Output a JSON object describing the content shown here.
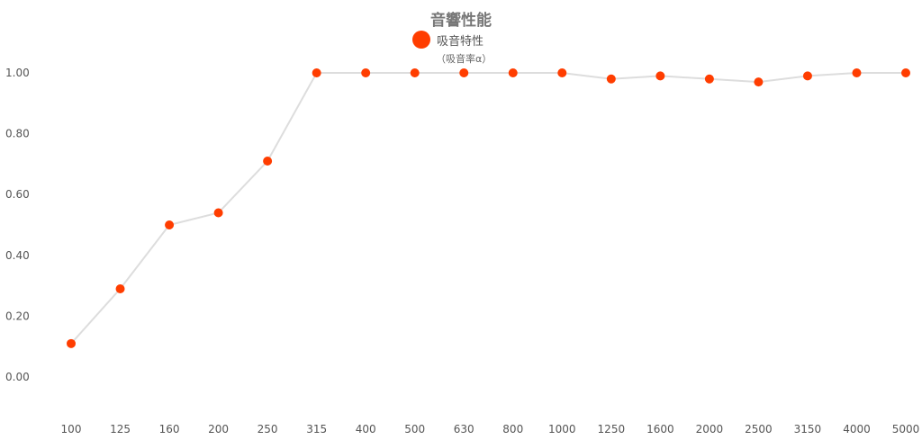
{
  "chart_data": {
    "type": "line",
    "title": "音響性能",
    "legend": {
      "label": "吸音特性",
      "unit": "（吸音率α）",
      "placement": "top-center"
    },
    "categories": [
      "100",
      "125",
      "160",
      "200",
      "250",
      "315",
      "400",
      "500",
      "630",
      "800",
      "1000",
      "1250",
      "1600",
      "2000",
      "2500",
      "3150",
      "4000",
      "5000"
    ],
    "series": [
      {
        "name": "吸音特性",
        "values": [
          0.11,
          0.29,
          0.5,
          0.54,
          0.71,
          1.0,
          1.0,
          1.0,
          1.0,
          1.0,
          1.0,
          0.98,
          0.99,
          0.98,
          0.97,
          0.99,
          1.0,
          1.0
        ]
      }
    ],
    "yticks": [
      "0.00",
      "0.20",
      "0.40",
      "0.60",
      "0.80",
      "1.00"
    ],
    "ylim": [
      0,
      1.0
    ],
    "grid": false,
    "colors": {
      "marker": "#ff3d00",
      "line": "#dddddd"
    }
  }
}
